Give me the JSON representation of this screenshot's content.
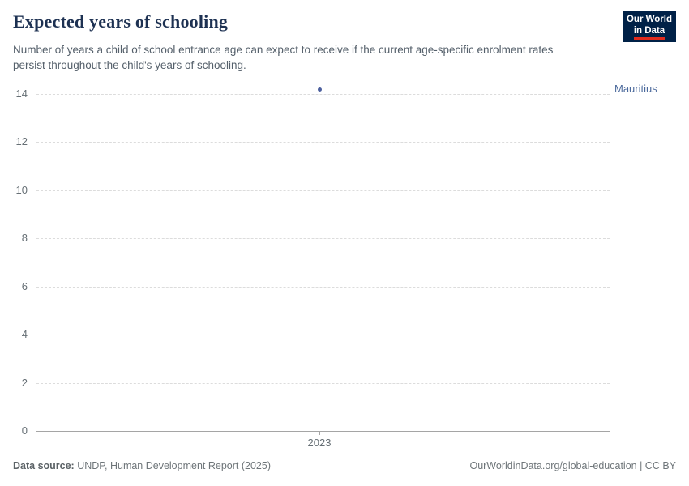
{
  "header": {
    "title": "Expected years of schooling",
    "subtitle": "Number of years a child of school entrance age can expect to receive if the current age-specific enrolment rates persist throughout the child's years of schooling."
  },
  "logo": {
    "line1": "Our World",
    "line2": "in Data"
  },
  "chart_data": {
    "type": "scatter",
    "title": "Expected years of schooling",
    "xlabel": "",
    "ylabel": "",
    "ylim": [
      0,
      14
    ],
    "yticks": [
      0,
      2,
      4,
      6,
      8,
      10,
      12,
      14
    ],
    "xticks": [
      "2023"
    ],
    "grid": "horizontal-dashed",
    "legend_position": "right-of-point",
    "series": [
      {
        "name": "Mauritius",
        "color": "#4c5f9e",
        "label_color": "#4c6a9c",
        "points": [
          {
            "x": "2023",
            "y": 14.2
          }
        ]
      }
    ]
  },
  "footer": {
    "source_label": "Data source:",
    "source_text": " UNDP, Human Development Report (2025)",
    "credit": "OurWorldinData.org/global-education | CC BY"
  },
  "colors": {
    "accent_blue": "#4c6a9c",
    "logo_bg": "#002147",
    "logo_accent": "#e02b1d",
    "title_text": "#1d3152",
    "axis_text": "#666f75"
  }
}
